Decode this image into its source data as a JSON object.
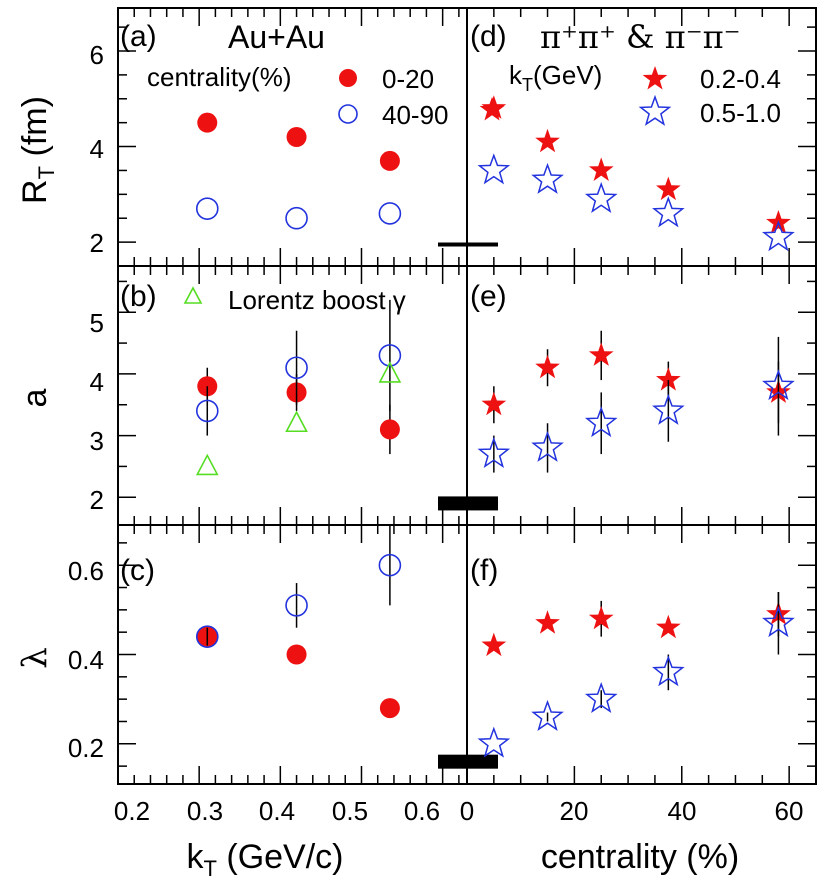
{
  "colors": {
    "red": "#ee1111",
    "blue": "#2233dd",
    "green": "#55dd22",
    "black": "#000000"
  },
  "chart_data": {
    "type": "scatter",
    "left_xaxis": {
      "label": "k_T (GeV/c)",
      "ticks": [
        "0.2",
        "0.3",
        "0.4",
        "0.5",
        "0.6"
      ],
      "range": [
        0.2,
        0.63
      ]
    },
    "right_xaxis": {
      "label": "centrality (%)",
      "ticks": [
        "0",
        "20",
        "40",
        "60"
      ],
      "range": [
        0,
        65
      ]
    },
    "panels": [
      {
        "id": "a",
        "label": "(a)",
        "ylabel": "R_T (fm)",
        "yticks": [
          "2",
          "4",
          "6"
        ],
        "ylim": [
          1.5,
          6.9
        ],
        "title": "Au+Au",
        "legend": {
          "header": "centrality(%)",
          "entries": [
            "0-20",
            "40-90"
          ]
        },
        "series": [
          {
            "name": "0-20",
            "marker": "filled-circle",
            "color": "red",
            "x": [
              0.31,
              0.42,
              0.535
            ],
            "y": [
              4.5,
              4.2,
              3.7
            ],
            "err": [
              0,
              0,
              0
            ]
          },
          {
            "name": "40-90",
            "marker": "open-circle",
            "color": "blue",
            "x": [
              0.31,
              0.42,
              0.535
            ],
            "y": [
              2.7,
              2.5,
              2.6
            ],
            "err": [
              0,
              0,
              0
            ]
          }
        ],
        "sys_bar_y": 1.95
      },
      {
        "id": "b",
        "label": "(b)",
        "ylabel": "a",
        "yticks": [
          "2",
          "3",
          "4",
          "5"
        ],
        "ylim": [
          1.55,
          5.75
        ],
        "legend": {
          "entries": [
            "Lorentz boost γ"
          ]
        },
        "series": [
          {
            "name": "0-20",
            "marker": "filled-circle",
            "color": "red",
            "x": [
              0.31,
              0.42,
              0.535
            ],
            "y": [
              3.8,
              3.7,
              3.1
            ],
            "err": [
              0.3,
              0.3,
              0.4
            ]
          },
          {
            "name": "40-90",
            "marker": "open-circle",
            "color": "blue",
            "x": [
              0.31,
              0.42,
              0.535
            ],
            "y": [
              3.4,
              4.1,
              4.3
            ],
            "err": [
              0.4,
              0.6,
              0.9
            ]
          },
          {
            "name": "Lorentz boost γ",
            "marker": "open-triangle",
            "color": "green",
            "x": [
              0.31,
              0.42,
              0.535
            ],
            "y": [
              2.5,
              3.2,
              4.0
            ],
            "err": [
              0,
              0,
              0
            ]
          }
        ],
        "sys_bar_y": 1.9
      },
      {
        "id": "c",
        "label": "(c)",
        "ylabel": "λ",
        "yticks": [
          "0.2",
          "0.4",
          "0.6"
        ],
        "ylim": [
          0.11,
          0.69
        ],
        "series": [
          {
            "name": "0-20",
            "marker": "filled-circle",
            "color": "red",
            "x": [
              0.31,
              0.42,
              0.535
            ],
            "y": [
              0.44,
              0.4,
              0.28
            ],
            "err": [
              0.01,
              0.02,
              0.0
            ]
          },
          {
            "name": "40-90",
            "marker": "open-circle",
            "color": "blue",
            "x": [
              0.31,
              0.42,
              0.535
            ],
            "y": [
              0.44,
              0.51,
              0.6
            ],
            "err": [
              0.02,
              0.05,
              0.09
            ]
          }
        ],
        "sys_bar_y": 0.16
      },
      {
        "id": "d",
        "label": "(d)",
        "title": "π⁺π⁺ & π⁻π⁻",
        "legend": {
          "header": "k_T(GeV)",
          "entries": [
            "0.2-0.4",
            "0.5-1.0"
          ]
        },
        "series": [
          {
            "name": "0.2-0.4",
            "marker": "filled-star",
            "color": "red",
            "x": [
              5,
              15,
              25,
              37.5,
              58
            ],
            "y": [
              4.8,
              4.1,
              3.5,
              3.1,
              2.4
            ],
            "err": [
              0,
              0,
              0,
              0,
              0
            ]
          },
          {
            "name": "0.5-1.0",
            "marker": "open-star",
            "color": "blue",
            "x": [
              5,
              15,
              25,
              37.5,
              58
            ],
            "y": [
              3.5,
              3.3,
              2.9,
              2.6,
              2.1
            ],
            "err": [
              0,
              0,
              0,
              0,
              0
            ]
          }
        ]
      },
      {
        "id": "e",
        "label": "(e)",
        "series": [
          {
            "name": "0.2-0.4",
            "marker": "filled-star",
            "color": "red",
            "x": [
              5,
              15,
              25,
              37.5,
              58
            ],
            "y": [
              3.5,
              4.1,
              4.3,
              3.9,
              3.7
            ],
            "err": [
              0.3,
              0.3,
              0.4,
              0.3,
              0.5
            ]
          },
          {
            "name": "0.5-1.0",
            "marker": "open-star",
            "color": "blue",
            "x": [
              5,
              15,
              25,
              37.5,
              58
            ],
            "y": [
              2.7,
              2.8,
              3.2,
              3.4,
              3.8
            ],
            "err": [
              0.3,
              0.4,
              0.5,
              0.5,
              0.8
            ]
          }
        ]
      },
      {
        "id": "f",
        "label": "(f)",
        "series": [
          {
            "name": "0.2-0.4",
            "marker": "filled-star",
            "color": "red",
            "x": [
              5,
              15,
              25,
              37.5,
              58
            ],
            "y": [
              0.42,
              0.47,
              0.48,
              0.46,
              0.49
            ],
            "err": [
              0,
              0.01,
              0.04,
              0.01,
              0.05
            ]
          },
          {
            "name": "0.5-1.0",
            "marker": "open-star",
            "color": "blue",
            "x": [
              5,
              15,
              25,
              37.5,
              58
            ],
            "y": [
              0.2,
              0.26,
              0.3,
              0.36,
              0.47
            ],
            "err": [
              0,
              0.01,
              0.02,
              0.04,
              0.07
            ]
          }
        ]
      }
    ]
  }
}
